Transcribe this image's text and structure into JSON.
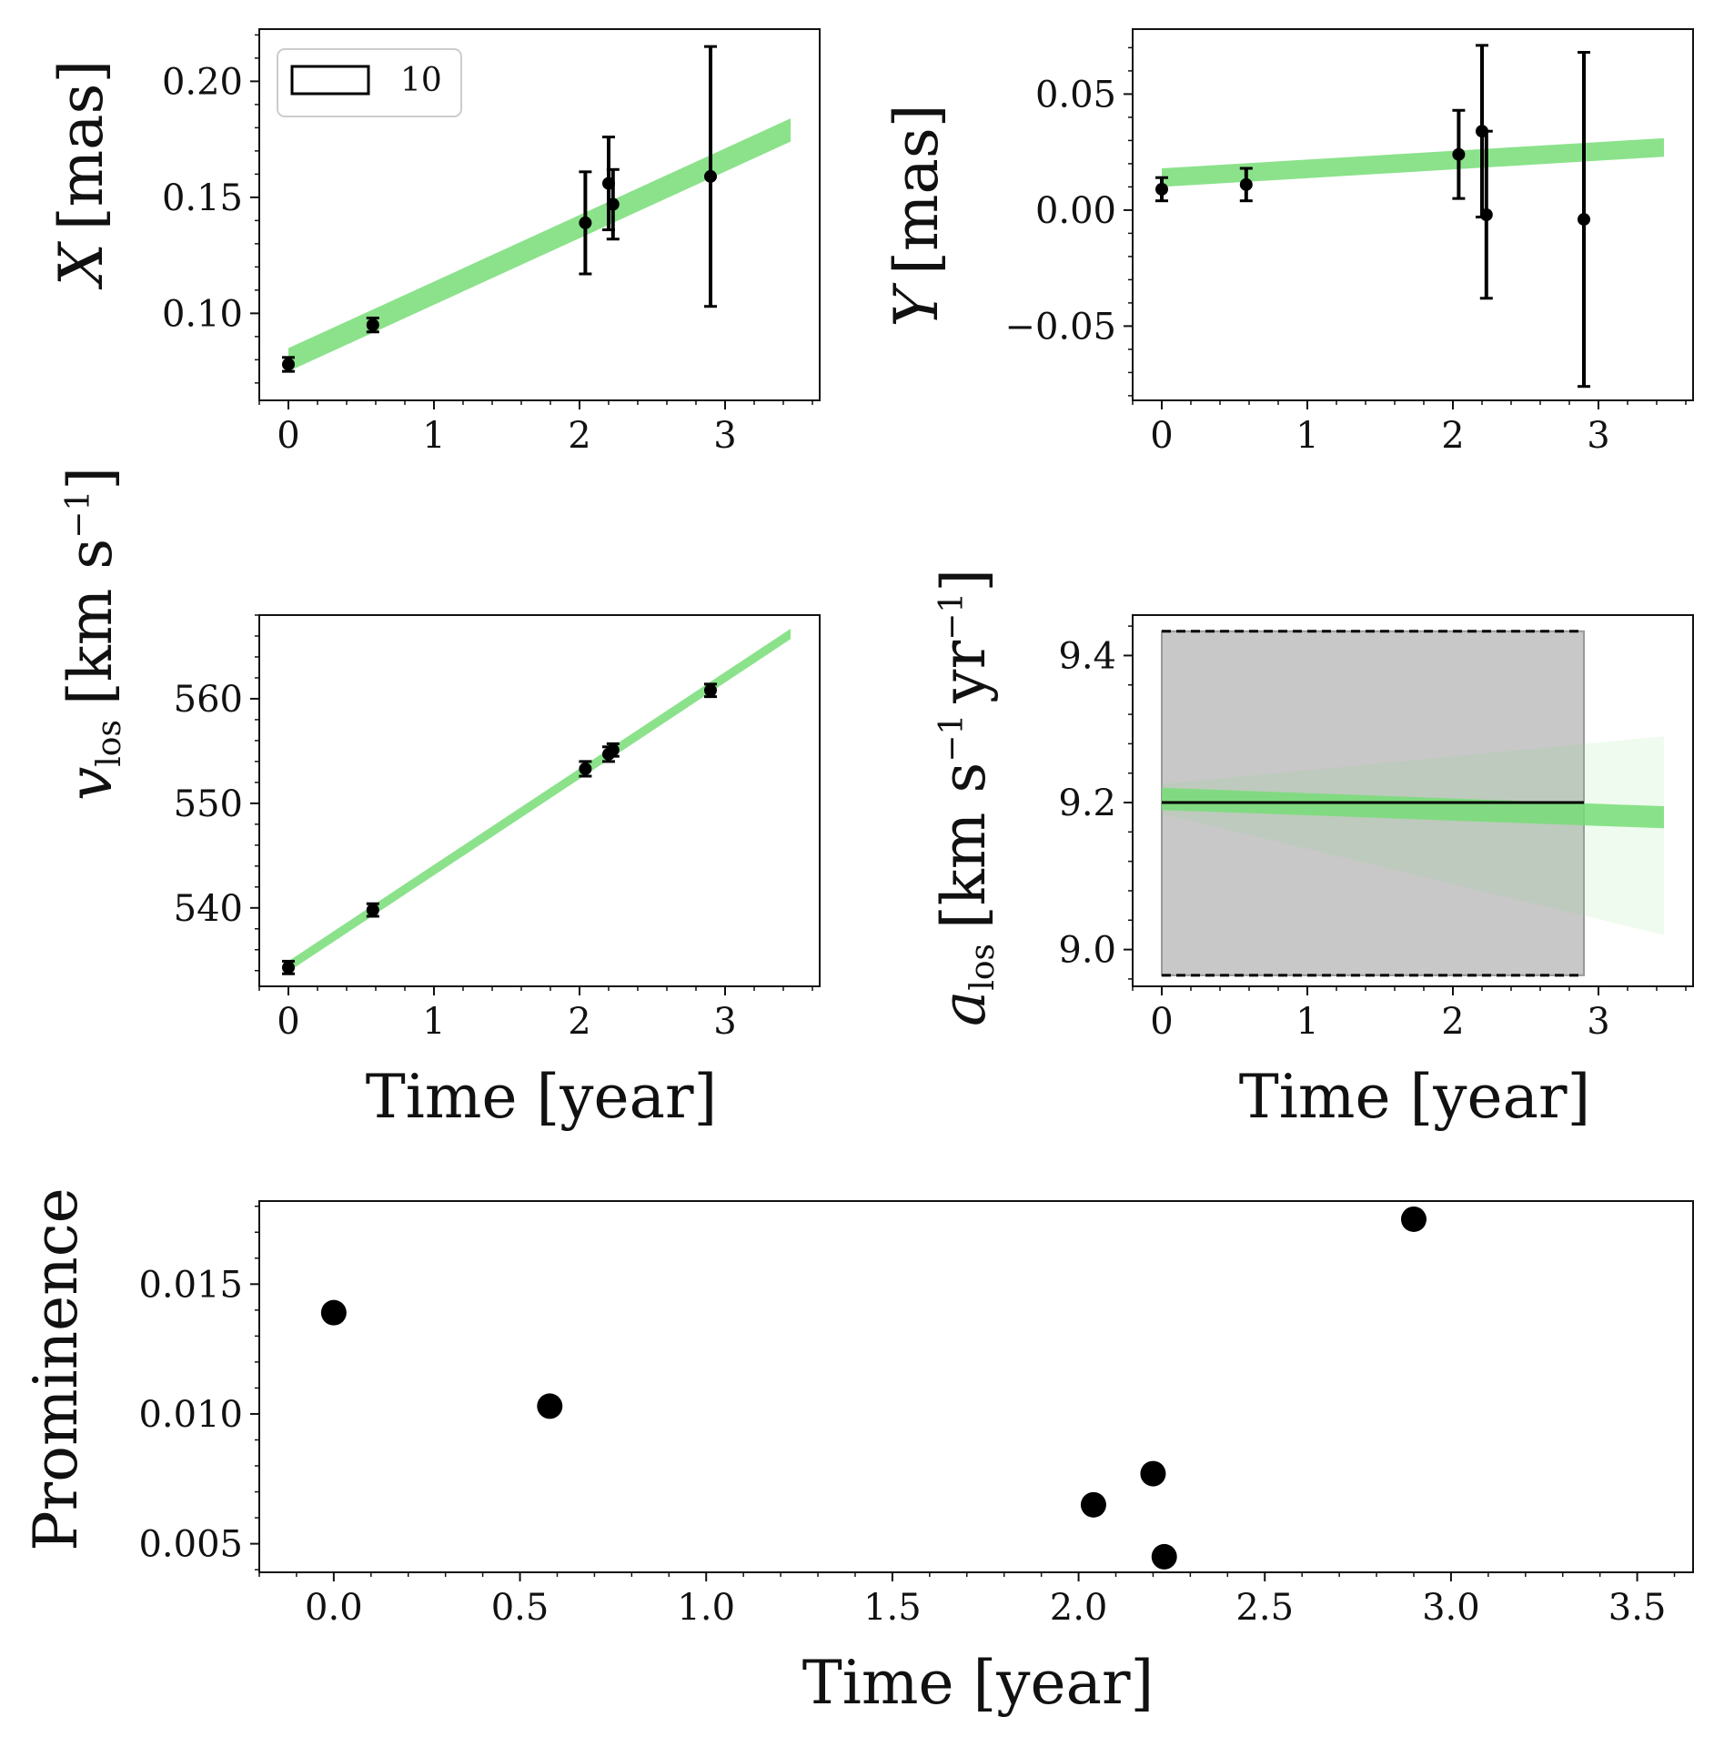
{
  "colors": {
    "band": "#77dd77",
    "points": "#000000",
    "frame": "#111111",
    "shade": "#c8c8c8"
  },
  "chart_data": [
    {
      "type": "scatter",
      "id": "px",
      "title": "",
      "xlabel": "",
      "ylabel": "X [mas]",
      "xlim": [
        -0.2,
        3.65
      ],
      "ylim": [
        0.0625,
        0.2225
      ],
      "xticks": [
        0,
        1,
        2,
        3
      ],
      "xtick_labels": [
        "0",
        "1",
        "2",
        "3"
      ],
      "yticks": [
        0.1,
        0.15,
        0.2
      ],
      "ytick_labels": [
        "0.10",
        "0.15",
        "0.20"
      ],
      "points": [
        {
          "x": 0.0,
          "y": 0.078,
          "err": 0.003
        },
        {
          "x": 0.58,
          "y": 0.095,
          "err": 0.003
        },
        {
          "x": 2.04,
          "y": 0.139,
          "err": 0.022
        },
        {
          "x": 2.2,
          "y": 0.156,
          "err": 0.02
        },
        {
          "x": 2.23,
          "y": 0.147,
          "err": 0.015
        },
        {
          "x": 2.9,
          "y": 0.159,
          "err": 0.056
        }
      ],
      "band": {
        "x0": 0.0,
        "y0": 0.08,
        "x1": 3.45,
        "y1": 0.179,
        "halfwidth": 0.005
      },
      "legend": {
        "label": "10",
        "position": "upper left"
      }
    },
    {
      "type": "scatter",
      "id": "py",
      "title": "",
      "xlabel": "",
      "ylabel": "Y [mas]",
      "xlim": [
        -0.2,
        3.65
      ],
      "ylim": [
        -0.082,
        0.078
      ],
      "xticks": [
        0,
        1,
        2,
        3
      ],
      "xtick_labels": [
        "0",
        "1",
        "2",
        "3"
      ],
      "yticks": [
        -0.05,
        0.0,
        0.05
      ],
      "ytick_labels": [
        "−0.05",
        "0.00",
        "0.05"
      ],
      "points": [
        {
          "x": 0.0,
          "y": 0.009,
          "err": 0.005
        },
        {
          "x": 0.58,
          "y": 0.011,
          "err": 0.007
        },
        {
          "x": 2.04,
          "y": 0.024,
          "err": 0.019
        },
        {
          "x": 2.2,
          "y": 0.034,
          "err": 0.037
        },
        {
          "x": 2.23,
          "y": -0.002,
          "err": 0.036
        },
        {
          "x": 2.9,
          "y": -0.004,
          "err": 0.072
        }
      ],
      "band": {
        "x0": 0.0,
        "y0": 0.014,
        "x1": 3.45,
        "y1": 0.027,
        "halfwidth": 0.004
      }
    },
    {
      "type": "scatter",
      "id": "pv",
      "title": "",
      "xlabel": "Time [year]",
      "ylabel": "v_los [km s^-1]",
      "xlim": [
        -0.2,
        3.65
      ],
      "ylim": [
        532.5,
        568.0
      ],
      "xticks": [
        0,
        1,
        2,
        3
      ],
      "xtick_labels": [
        "0",
        "1",
        "2",
        "3"
      ],
      "yticks": [
        540,
        550,
        560
      ],
      "ytick_labels": [
        "540",
        "550",
        "560"
      ],
      "points": [
        {
          "x": 0.0,
          "y": 534.3,
          "err": 0.6
        },
        {
          "x": 0.58,
          "y": 539.8,
          "err": 0.6
        },
        {
          "x": 2.04,
          "y": 553.3,
          "err": 0.7
        },
        {
          "x": 2.2,
          "y": 554.7,
          "err": 0.7
        },
        {
          "x": 2.23,
          "y": 555.1,
          "err": 0.6
        },
        {
          "x": 2.9,
          "y": 560.8,
          "err": 0.6
        }
      ],
      "band": {
        "x0": 0.0,
        "y0": 534.4,
        "x1": 3.45,
        "y1": 566.2,
        "halfwidth": 0.5
      }
    },
    {
      "type": "line",
      "id": "pa",
      "title": "",
      "xlabel": "Time [year]",
      "ylabel": "a_los [km s^-1 yr^-1]",
      "xlim": [
        -0.2,
        3.65
      ],
      "ylim": [
        8.95,
        9.455
      ],
      "xticks": [
        0,
        1,
        2,
        3
      ],
      "xtick_labels": [
        "0",
        "1",
        "2",
        "3"
      ],
      "yticks": [
        9.0,
        9.2,
        9.4
      ],
      "ytick_labels": [
        "9.0",
        "9.2",
        "9.4"
      ],
      "shaded_interval": {
        "x0": 0.0,
        "x1": 2.9,
        "y_low": 8.965,
        "y_high": 9.433
      },
      "constant_line": {
        "x0": 0.0,
        "x1": 2.9,
        "y": 9.2
      },
      "band": {
        "x0": 0.0,
        "y0": 9.205,
        "x1": 3.45,
        "y1": 9.18,
        "halfwidth": 0.015
      },
      "faint_bundle": {
        "x0": 0.0,
        "x1": 3.45,
        "y_low_end": 9.02,
        "y_high_end": 9.29
      }
    },
    {
      "type": "scatter",
      "id": "pp",
      "title": "",
      "xlabel": "Time [year]",
      "ylabel": "Prominence",
      "xlim": [
        -0.2,
        3.65
      ],
      "ylim": [
        0.0039,
        0.0182
      ],
      "xticks": [
        0.0,
        0.5,
        1.0,
        1.5,
        2.0,
        2.5,
        3.0,
        3.5
      ],
      "xtick_labels": [
        "0.0",
        "0.5",
        "1.0",
        "1.5",
        "2.0",
        "2.5",
        "3.0",
        "3.5"
      ],
      "yticks": [
        0.005,
        0.01,
        0.015
      ],
      "ytick_labels": [
        "0.005",
        "0.010",
        "0.015"
      ],
      "points": [
        {
          "x": 0.0,
          "y": 0.0139
        },
        {
          "x": 0.58,
          "y": 0.0103
        },
        {
          "x": 2.04,
          "y": 0.0065
        },
        {
          "x": 2.2,
          "y": 0.0077
        },
        {
          "x": 2.23,
          "y": 0.0045
        },
        {
          "x": 2.9,
          "y": 0.0175
        }
      ]
    }
  ]
}
